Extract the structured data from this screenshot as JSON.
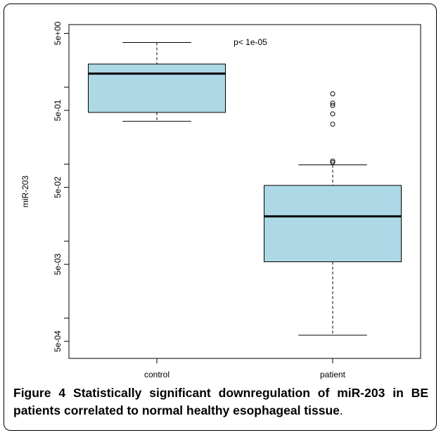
{
  "chart_data": {
    "type": "boxplot",
    "ylabel": "miR-203",
    "xlabel": "",
    "yscale": "log",
    "ylim": [
      0.0003,
      6.5
    ],
    "y_ticks": [
      {
        "value": 5,
        "label": "5e+00"
      },
      {
        "value": 0.5,
        "label": "5e-01"
      },
      {
        "value": 0.05,
        "label": "5e-02"
      },
      {
        "value": 0.005,
        "label": "5e-03"
      },
      {
        "value": 0.0005,
        "label": "5e-04"
      }
    ],
    "y_minor_ticks": [
      1,
      0.1,
      0.01,
      0.001
    ],
    "categories": [
      "control",
      "patient"
    ],
    "annotation": "p< 1e-05",
    "boxes": [
      {
        "category": "control",
        "whisker_low": 0.36,
        "q1": 0.47,
        "median": 1.5,
        "q3": 2.0,
        "whisker_high": 3.8,
        "outliers": [],
        "fill": "#add8e6"
      },
      {
        "category": "patient",
        "whisker_low": 0.0006,
        "q1": 0.0054,
        "median": 0.021,
        "q3": 0.053,
        "whisker_high": 0.098,
        "outliers": [
          0.105,
          0.11,
          0.33,
          0.45,
          0.58,
          0.62,
          0.82
        ],
        "fill": "#add8e6"
      }
    ],
    "grid": false,
    "legend": "none"
  },
  "caption": {
    "figure_label": "Figure 4",
    "text": "Statistically significant downregulation of miR-203 in BE patients correlated to normal healthy esophageal tissue",
    "trailing": "."
  }
}
